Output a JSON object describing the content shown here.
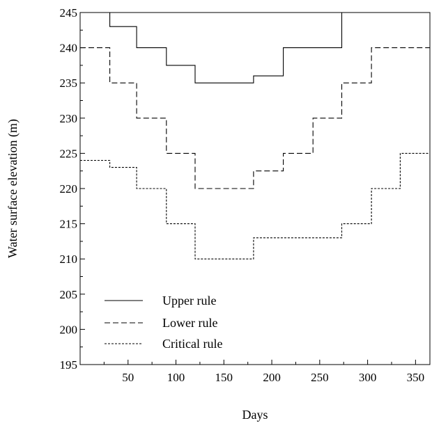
{
  "chart_data": {
    "type": "line",
    "title": "",
    "xlabel": "Days",
    "ylabel": "Water surface elevation (m)",
    "xlim": [
      0,
      365
    ],
    "ylim": [
      195,
      245
    ],
    "x_ticks": [
      50,
      100,
      150,
      200,
      250,
      300,
      350
    ],
    "y_ticks": [
      195,
      200,
      205,
      210,
      215,
      220,
      225,
      230,
      235,
      240,
      245
    ],
    "grid": false,
    "legend_position": "bottom-left",
    "series": [
      {
        "name": "Upper rule",
        "style": "solid",
        "x": [
          0,
          31,
          31,
          59,
          59,
          90,
          90,
          120,
          120,
          181,
          181,
          212,
          212,
          273,
          273,
          365
        ],
        "y": [
          245,
          245,
          243,
          243,
          240,
          240,
          237.5,
          237.5,
          235,
          235,
          236,
          236,
          240,
          240,
          245,
          245
        ]
      },
      {
        "name": "Lower rule",
        "style": "dashed",
        "x": [
          0,
          31,
          31,
          59,
          59,
          90,
          90,
          120,
          120,
          181,
          181,
          212,
          212,
          243,
          243,
          273,
          273,
          304,
          304,
          365
        ],
        "y": [
          240,
          240,
          235,
          235,
          230,
          230,
          225,
          225,
          220,
          220,
          222.5,
          222.5,
          225,
          225,
          230,
          230,
          235,
          235,
          240,
          240
        ]
      },
      {
        "name": "Critical rule",
        "style": "dotted",
        "x": [
          0,
          31,
          31,
          59,
          59,
          90,
          90,
          120,
          120,
          181,
          181,
          273,
          273,
          304,
          304,
          334,
          334,
          365
        ],
        "y": [
          224,
          224,
          223,
          223,
          220,
          220,
          215,
          215,
          210,
          210,
          213,
          213,
          215,
          215,
          220,
          220,
          225,
          225
        ]
      }
    ]
  }
}
